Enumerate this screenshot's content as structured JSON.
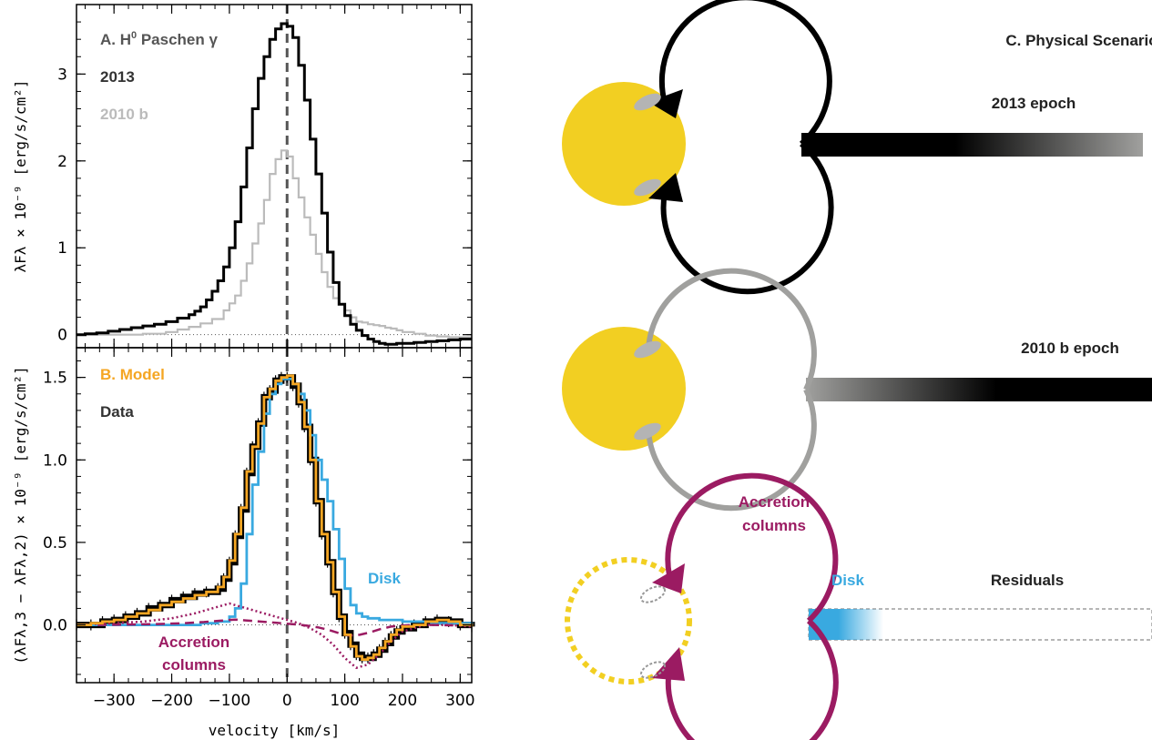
{
  "colors": {
    "data_2013": "#000000",
    "data_2010b": "#bbbbbb",
    "model": "#f5a623",
    "disk": "#39a9e0",
    "accretion": "#9b1b62",
    "star": "#f2cf22",
    "stream": "#a0a09e",
    "hotspot": "#b4b4b4",
    "zero_line": "#555555"
  },
  "chart_data": [
    {
      "type": "line",
      "panel_label": "A. H",
      "panel_label_sup": "0",
      "panel_label_rest": "Paschen γ",
      "ylabel": "λF<sub>λ</sub> × 10<sup>−9</sup> [erg/s/cm²]",
      "ylabel_text": "λFλ × 10⁻⁹ [erg/s/cm²]",
      "xlim": [
        -365,
        320
      ],
      "ylim": [
        -0.15,
        3.8
      ],
      "yticks": [
        0,
        1,
        2,
        3
      ],
      "ytick_labels": [
        "0",
        "1",
        "2",
        "3"
      ],
      "xticks": [
        -300,
        -200,
        -100,
        0,
        100,
        200,
        300
      ],
      "grid": false,
      "series": [
        {
          "name": "2013",
          "x": [
            -365,
            -350,
            -330,
            -310,
            -290,
            -270,
            -250,
            -230,
            -210,
            -190,
            -170,
            -160,
            -150,
            -140,
            -130,
            -120,
            -110,
            -100,
            -90,
            -80,
            -70,
            -60,
            -50,
            -40,
            -30,
            -20,
            -10,
            0,
            10,
            20,
            30,
            40,
            50,
            60,
            70,
            80,
            90,
            100,
            110,
            120,
            130,
            140,
            150,
            160,
            170,
            180,
            190,
            200,
            220,
            240,
            260,
            280,
            300,
            320
          ],
          "y": [
            0.0,
            0.01,
            0.02,
            0.04,
            0.06,
            0.08,
            0.1,
            0.12,
            0.15,
            0.19,
            0.23,
            0.27,
            0.32,
            0.4,
            0.5,
            0.62,
            0.78,
            1.0,
            1.3,
            1.7,
            2.15,
            2.6,
            2.95,
            3.2,
            3.4,
            3.52,
            3.58,
            3.55,
            3.42,
            3.1,
            2.7,
            2.25,
            1.85,
            1.4,
            0.95,
            0.6,
            0.35,
            0.22,
            0.12,
            0.05,
            -0.01,
            -0.05,
            -0.08,
            -0.1,
            -0.11,
            -0.11,
            -0.1,
            -0.1,
            -0.09,
            -0.08,
            -0.07,
            -0.06,
            -0.05,
            -0.05
          ]
        },
        {
          "name": "2010 b",
          "x": [
            -365,
            -330,
            -290,
            -250,
            -210,
            -190,
            -170,
            -150,
            -130,
            -110,
            -100,
            -90,
            -80,
            -70,
            -60,
            -50,
            -40,
            -30,
            -20,
            -10,
            0,
            10,
            20,
            30,
            40,
            50,
            60,
            70,
            80,
            90,
            100,
            110,
            120,
            130,
            140,
            150,
            160,
            170,
            180,
            190,
            200,
            220,
            240,
            260,
            280,
            300,
            320
          ],
          "y": [
            0.0,
            0.0,
            0.0,
            0.01,
            0.03,
            0.06,
            0.09,
            0.13,
            0.18,
            0.28,
            0.36,
            0.45,
            0.62,
            0.82,
            1.05,
            1.28,
            1.55,
            1.85,
            2.02,
            2.12,
            2.05,
            1.8,
            1.58,
            1.35,
            1.15,
            0.93,
            0.72,
            0.55,
            0.42,
            0.35,
            0.28,
            0.2,
            0.15,
            0.14,
            0.12,
            0.11,
            0.1,
            0.08,
            0.07,
            0.05,
            0.03,
            0.01,
            -0.01,
            -0.02,
            -0.03,
            -0.03,
            -0.03
          ]
        }
      ]
    },
    {
      "type": "line",
      "panel_label": "B. Model",
      "data_label": "Data",
      "disk_label": "Disk",
      "accretion_label_1": "Accretion",
      "accretion_label_2": "columns",
      "xlabel": "velocity [km/s]",
      "ylabel": "(λF<sub>λ,3</sub> − λF<sub>λ,2</sub>) × 10<sup>−9</sup> [erg/s/cm²]",
      "ylabel_text": "(λFλ,3 − λFλ,2) × 10⁻⁹ [erg/s/cm²]",
      "xlim": [
        -365,
        320
      ],
      "ylim": [
        -0.35,
        1.68
      ],
      "yticks": [
        0.0,
        0.5,
        1.0,
        1.5
      ],
      "ytick_labels": [
        "0.0",
        "0.5",
        "1.0",
        "1.5"
      ],
      "xticks": [
        -300,
        -200,
        -100,
        0,
        100,
        200,
        300
      ],
      "xtick_labels": [
        "−300",
        "−200",
        "−100",
        "0",
        "100",
        "200",
        "300"
      ],
      "grid": false,
      "series": [
        {
          "name": "Data",
          "x": [
            -365,
            -340,
            -320,
            -300,
            -280,
            -260,
            -240,
            -220,
            -200,
            -180,
            -160,
            -140,
            -120,
            -110,
            -100,
            -90,
            -80,
            -70,
            -60,
            -50,
            -40,
            -30,
            -20,
            -10,
            0,
            10,
            20,
            30,
            40,
            50,
            60,
            70,
            80,
            90,
            100,
            110,
            120,
            130,
            140,
            150,
            160,
            170,
            180,
            190,
            200,
            220,
            240,
            260,
            280,
            300,
            320
          ],
          "y": [
            0.0,
            0.0,
            0.02,
            0.03,
            0.05,
            0.07,
            0.1,
            0.12,
            0.15,
            0.17,
            0.19,
            0.2,
            0.22,
            0.28,
            0.38,
            0.54,
            0.7,
            0.92,
            1.08,
            1.22,
            1.38,
            1.42,
            1.48,
            1.5,
            1.5,
            1.45,
            1.35,
            1.2,
            1.0,
            0.75,
            0.55,
            0.38,
            0.2,
            0.05,
            -0.05,
            -0.12,
            -0.18,
            -0.2,
            -0.2,
            -0.18,
            -0.15,
            -0.11,
            -0.07,
            -0.04,
            -0.02,
            0.0,
            0.02,
            0.03,
            0.02,
            0.0,
            -0.01
          ]
        },
        {
          "name": "Disk",
          "x": [
            -365,
            -200,
            -150,
            -120,
            -100,
            -90,
            -80,
            -70,
            -60,
            -50,
            -40,
            -30,
            -20,
            -10,
            0,
            10,
            20,
            30,
            40,
            50,
            60,
            70,
            80,
            90,
            100,
            110,
            120,
            130,
            140,
            160,
            200,
            250,
            320
          ],
          "y": [
            0.0,
            0.0,
            0.01,
            0.02,
            0.05,
            0.1,
            0.25,
            0.55,
            0.85,
            1.05,
            1.28,
            1.4,
            1.46,
            1.49,
            1.49,
            1.46,
            1.4,
            1.3,
            1.15,
            1.0,
            0.88,
            0.75,
            0.58,
            0.4,
            0.22,
            0.12,
            0.07,
            0.05,
            0.04,
            0.03,
            0.02,
            0.01,
            0.0
          ]
        },
        {
          "name": "Accretion columns",
          "x": [
            -365,
            -300,
            -250,
            -200,
            -160,
            -130,
            -110,
            -100,
            -80,
            -60,
            -40,
            -20,
            0,
            20,
            40,
            60,
            80,
            100,
            120,
            140,
            160,
            180,
            200,
            240,
            280,
            320
          ],
          "y": [
            0.0,
            0.01,
            0.02,
            0.04,
            0.07,
            0.1,
            0.12,
            0.13,
            0.11,
            0.09,
            0.07,
            0.05,
            0.03,
            0.01,
            -0.02,
            -0.06,
            -0.12,
            -0.2,
            -0.26,
            -0.24,
            -0.18,
            -0.1,
            -0.04,
            0.0,
            0.0,
            -0.01
          ]
        },
        {
          "name": "Model",
          "x": [
            -365,
            -340,
            -320,
            -300,
            -280,
            -260,
            -240,
            -220,
            -200,
            -180,
            -160,
            -140,
            -120,
            -110,
            -100,
            -90,
            -80,
            -70,
            -60,
            -50,
            -40,
            -30,
            -20,
            -10,
            0,
            10,
            20,
            30,
            40,
            50,
            60,
            70,
            80,
            90,
            100,
            110,
            120,
            130,
            140,
            150,
            160,
            170,
            180,
            190,
            200,
            220,
            240,
            260,
            280,
            300,
            320
          ],
          "y": [
            0.0,
            0.01,
            0.02,
            0.03,
            0.05,
            0.07,
            0.09,
            0.12,
            0.14,
            0.16,
            0.18,
            0.2,
            0.23,
            0.29,
            0.39,
            0.55,
            0.71,
            0.93,
            1.08,
            1.22,
            1.38,
            1.43,
            1.48,
            1.5,
            1.51,
            1.46,
            1.35,
            1.2,
            1.0,
            0.75,
            0.55,
            0.38,
            0.2,
            0.05,
            -0.06,
            -0.13,
            -0.19,
            -0.21,
            -0.2,
            -0.18,
            -0.14,
            -0.1,
            -0.06,
            -0.03,
            -0.01,
            0.0,
            0.02,
            0.03,
            0.02,
            0.0,
            -0.01
          ]
        }
      ]
    }
  ],
  "scenario": {
    "title": "C. Physical Scenario",
    "epoch_2013": "2013 epoch",
    "epoch_2010b": "2010 b epoch",
    "accretion_1": "Accretion",
    "accretion_2": "columns",
    "disk": "Disk",
    "residuals": "Residuals"
  }
}
